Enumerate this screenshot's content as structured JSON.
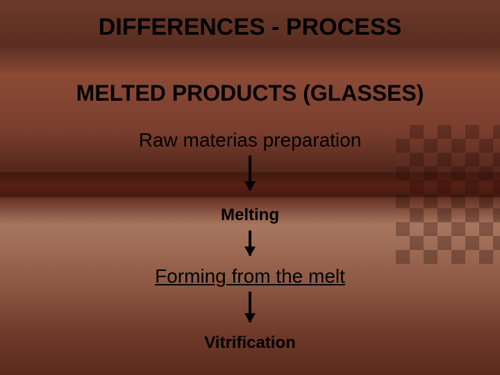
{
  "slide": {
    "title": "DIFFERENCES - PROCESS",
    "subtitle": "MELTED PRODUCTS (GLASSES)",
    "flow": {
      "type": "flowchart",
      "direction": "vertical",
      "steps": [
        {
          "label": "Raw materias preparation",
          "fontsize": 28,
          "bold": false,
          "underline": false
        },
        {
          "label": "Melting",
          "fontsize": 24,
          "bold": true,
          "underline": false
        },
        {
          "label": "Forming from the melt",
          "fontsize": 28,
          "bold": false,
          "underline": true
        },
        {
          "label": "Vitrification",
          "fontsize": 24,
          "bold": true,
          "underline": false
        }
      ],
      "arrow_color": "#000000",
      "text_color": "#000000",
      "title_color": "#000000",
      "title_fontsize": 34,
      "subtitle_fontsize": 32,
      "background_colors": {
        "top": "#6b3a2a",
        "mid_dark_band": "#3a140c",
        "lower_light": "#a8765f",
        "bottom": "#5a2a1c"
      }
    }
  }
}
